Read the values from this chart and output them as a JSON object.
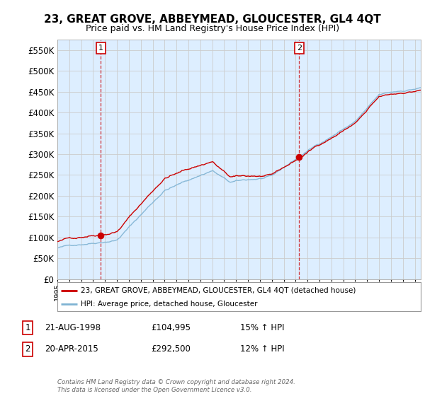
{
  "title": "23, GREAT GROVE, ABBEYMEAD, GLOUCESTER, GL4 4QT",
  "subtitle": "Price paid vs. HM Land Registry's House Price Index (HPI)",
  "title_fontsize": 11,
  "subtitle_fontsize": 9,
  "legend_line1": "23, GREAT GROVE, ABBEYMEAD, GLOUCESTER, GL4 4QT (detached house)",
  "legend_line2": "HPI: Average price, detached house, Gloucester",
  "transaction1_label": "1",
  "transaction1_date": "21-AUG-1998",
  "transaction1_price": "£104,995",
  "transaction1_hpi": "15% ↑ HPI",
  "transaction2_label": "2",
  "transaction2_date": "20-APR-2015",
  "transaction2_price": "£292,500",
  "transaction2_hpi": "12% ↑ HPI",
  "footer": "Contains HM Land Registry data © Crown copyright and database right 2024.\nThis data is licensed under the Open Government Licence v3.0.",
  "red_color": "#cc0000",
  "blue_color": "#7fb3d3",
  "grid_color": "#cccccc",
  "plot_bg_color": "#ddeeff",
  "ylim": [
    0,
    575000
  ],
  "yticks": [
    0,
    50000,
    100000,
    150000,
    200000,
    250000,
    300000,
    350000,
    400000,
    450000,
    500000,
    550000
  ],
  "xlim": [
    1995.0,
    2025.5
  ],
  "transaction1_x": 1998.64,
  "transaction1_y": 104995,
  "transaction2_x": 2015.3,
  "transaction2_y": 292500,
  "background_color": "#ffffff"
}
